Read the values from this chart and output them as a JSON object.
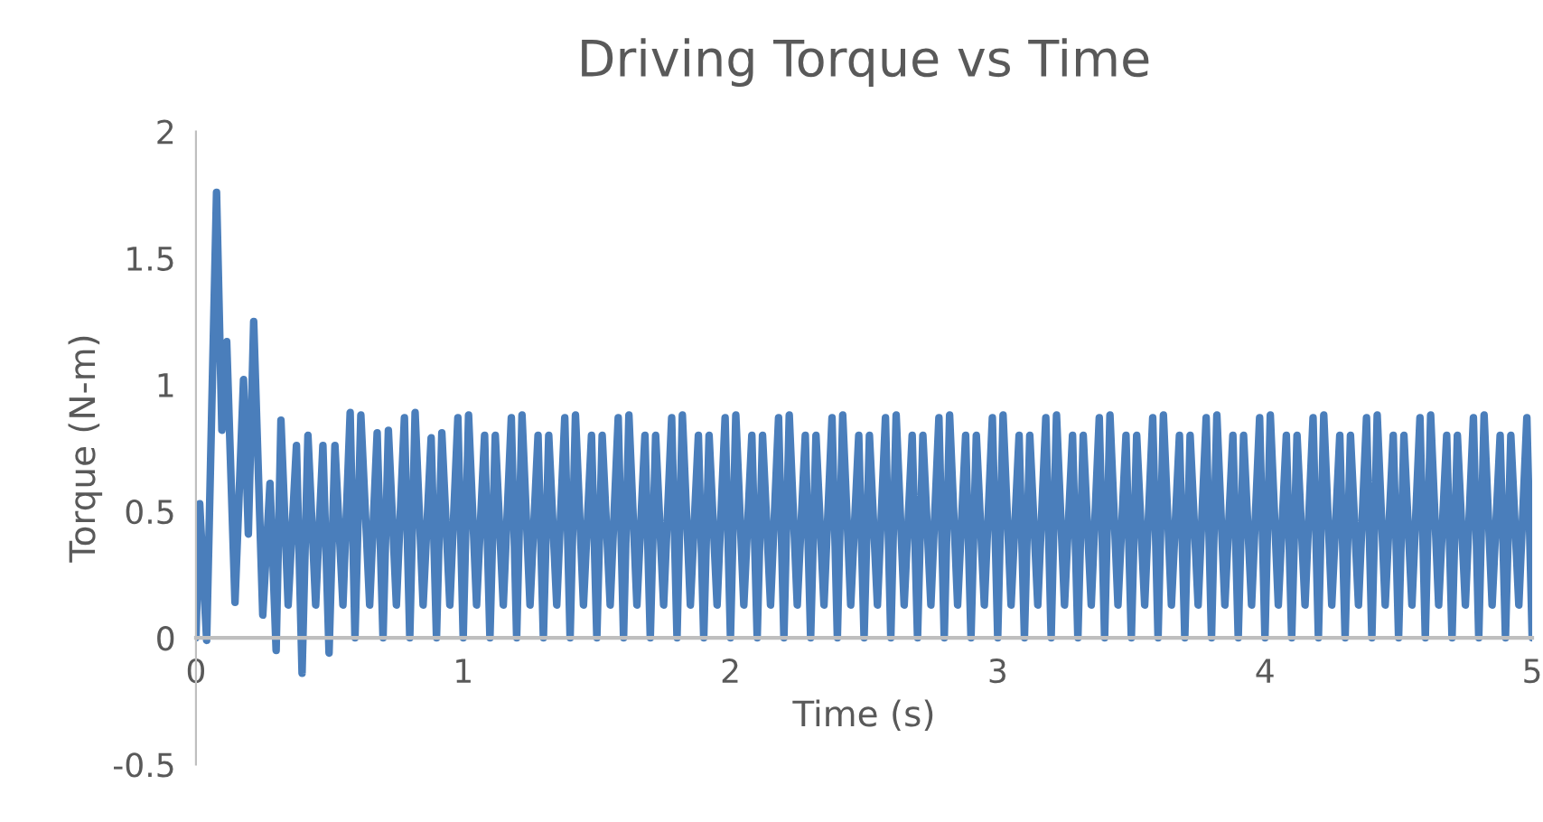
{
  "chart_data": {
    "type": "line",
    "title": "Driving Torque vs Time",
    "xlabel": "Time (s)",
    "ylabel": "Torque (N-m)",
    "xlim": [
      0,
      5
    ],
    "xticks": [
      0,
      1,
      2,
      3,
      4,
      5
    ],
    "ylim": [
      -0.5,
      2
    ],
    "yticks": [
      {
        "value": -0.5,
        "label": "-0.5"
      },
      0,
      0.5,
      1,
      1.5,
      2
    ],
    "grid": false,
    "legend": false,
    "marker": "none",
    "line_style": "solid",
    "series": [
      {
        "color": "#4a7ebb",
        "x": [
          0,
          0.014,
          0.04,
          0.077,
          0.097,
          0.115,
          0.146,
          0.178,
          0.196,
          0.216,
          0.25,
          0.277,
          0.3,
          0.318,
          0.345,
          0.376,
          0.397,
          0.419,
          0.448,
          0.475,
          0.498,
          0.52,
          0.55,
          0.577,
          0.595,
          0.617,
          0.65,
          0.678,
          0.7,
          0.72,
          0.75,
          0.78,
          0.8,
          0.82,
          0.85,
          0.88,
          0.9,
          0.92,
          0.95,
          0.98,
          1.0,
          1.02,
          1.05,
          1.08,
          1.1,
          1.12,
          1.15,
          1.18,
          1.2,
          1.22,
          1.25,
          1.28,
          1.3,
          1.32,
          1.35,
          1.38,
          1.4,
          1.42,
          1.45,
          1.48,
          1.5,
          1.52,
          1.55,
          1.58,
          1.6,
          1.62,
          1.65,
          1.68,
          1.7,
          1.72,
          1.75,
          1.78,
          1.8,
          1.82,
          1.85,
          1.88,
          1.9,
          1.92,
          1.95,
          1.98,
          2.0,
          2.02,
          2.05,
          2.08,
          2.1,
          2.12,
          2.15,
          2.18,
          2.2,
          2.22,
          2.25,
          2.28,
          2.3,
          2.32,
          2.35,
          2.38,
          2.4,
          2.42,
          2.45,
          2.48,
          2.5,
          2.52,
          2.55,
          2.58,
          2.6,
          2.62,
          2.65,
          2.68,
          2.7,
          2.72,
          2.75,
          2.78,
          2.8,
          2.82,
          2.85,
          2.88,
          2.9,
          2.92,
          2.95,
          2.98,
          3.0,
          3.02,
          3.05,
          3.08,
          3.1,
          3.12,
          3.15,
          3.18,
          3.2,
          3.22,
          3.25,
          3.28,
          3.3,
          3.32,
          3.35,
          3.38,
          3.4,
          3.42,
          3.45,
          3.48,
          3.5,
          3.52,
          3.55,
          3.58,
          3.6,
          3.62,
          3.65,
          3.68,
          3.7,
          3.72,
          3.75,
          3.78,
          3.8,
          3.82,
          3.85,
          3.88,
          3.9,
          3.92,
          3.95,
          3.98,
          4.0,
          4.02,
          4.05,
          4.08,
          4.1,
          4.12,
          4.15,
          4.18,
          4.2,
          4.22,
          4.25,
          4.28,
          4.3,
          4.32,
          4.35,
          4.38,
          4.4,
          4.42,
          4.45,
          4.48,
          4.5,
          4.52,
          4.55,
          4.58,
          4.6,
          4.62,
          4.65,
          4.68,
          4.7,
          4.72,
          4.75,
          4.78,
          4.8,
          4.82,
          4.85,
          4.88,
          4.9,
          4.92,
          4.95,
          4.98,
          5.0
        ],
        "values": [
          0,
          0.53,
          -0.01,
          1.76,
          0.82,
          1.17,
          0.14,
          1.02,
          0.41,
          1.25,
          0.09,
          0.61,
          -0.05,
          0.86,
          0.13,
          0.76,
          -0.14,
          0.8,
          0.13,
          0.76,
          -0.06,
          0.76,
          0.13,
          0.89,
          0,
          0.88,
          0.13,
          0.81,
          0,
          0.82,
          0.13,
          0.87,
          0,
          0.89,
          0.13,
          0.79,
          0,
          0.81,
          0.13,
          0.87,
          0,
          0.88,
          0.13,
          0.8,
          0,
          0.8,
          0.13,
          0.87,
          0,
          0.88,
          0.13,
          0.8,
          0,
          0.8,
          0.13,
          0.87,
          0,
          0.88,
          0.13,
          0.8,
          0,
          0.8,
          0.13,
          0.87,
          0,
          0.88,
          0.13,
          0.8,
          0,
          0.8,
          0.13,
          0.87,
          0,
          0.88,
          0.13,
          0.8,
          0,
          0.8,
          0.13,
          0.87,
          0,
          0.88,
          0.13,
          0.8,
          0,
          0.8,
          0.13,
          0.87,
          0,
          0.88,
          0.13,
          0.8,
          0,
          0.8,
          0.13,
          0.87,
          0,
          0.88,
          0.13,
          0.8,
          0,
          0.8,
          0.13,
          0.87,
          0,
          0.88,
          0.13,
          0.8,
          0,
          0.8,
          0.13,
          0.87,
          0,
          0.88,
          0.13,
          0.8,
          0,
          0.8,
          0.13,
          0.87,
          0,
          0.88,
          0.13,
          0.8,
          0,
          0.8,
          0.13,
          0.87,
          0,
          0.88,
          0.13,
          0.8,
          0,
          0.8,
          0.13,
          0.87,
          0,
          0.88,
          0.13,
          0.8,
          0,
          0.8,
          0.13,
          0.87,
          0,
          0.88,
          0.13,
          0.8,
          0,
          0.8,
          0.13,
          0.87,
          0,
          0.88,
          0.13,
          0.8,
          0,
          0.8,
          0.13,
          0.87,
          0,
          0.88,
          0.13,
          0.8,
          0,
          0.8,
          0.13,
          0.87,
          0,
          0.88,
          0.13,
          0.8,
          0,
          0.8,
          0.13,
          0.87,
          0,
          0.88,
          0.13,
          0.8,
          0,
          0.8,
          0.13,
          0.87,
          0,
          0.88,
          0.13,
          0.8,
          0,
          0.8,
          0.13,
          0.87,
          0,
          0.88,
          0.13,
          0.8,
          0,
          0.8,
          0.13,
          0.87,
          0
        ]
      }
    ]
  }
}
